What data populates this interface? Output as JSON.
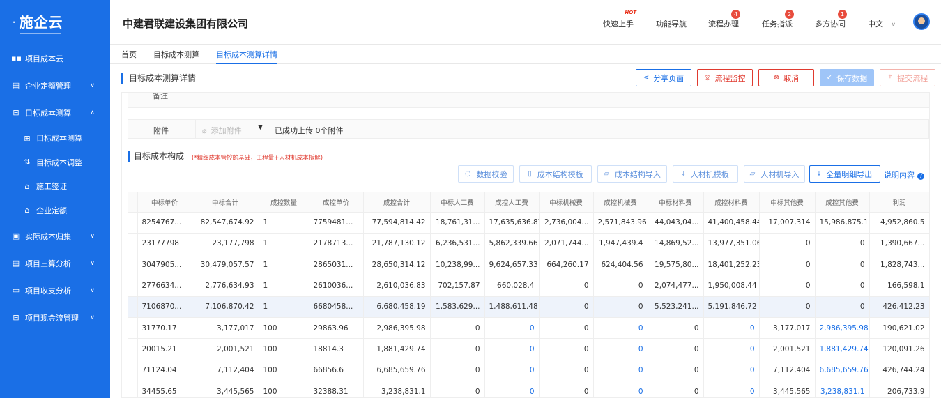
{
  "sidebar": {
    "logo": "施企云",
    "items": [
      {
        "label": "项目成本云",
        "icon": "grid-icon",
        "glyph": "▪▪",
        "chevron": ""
      },
      {
        "label": "企业定额管理",
        "icon": "doc-icon",
        "glyph": "▤",
        "chevron": "∨"
      },
      {
        "label": "目标成本测算",
        "icon": "layers-icon",
        "glyph": "⊟",
        "chevron": "∧"
      },
      {
        "label": "目标成本测算",
        "icon": "calc-icon",
        "glyph": "⊞",
        "chevron": "",
        "sub": true
      },
      {
        "label": "目标成本调整",
        "icon": "adjust-icon",
        "glyph": "⇅",
        "chevron": "",
        "sub": true
      },
      {
        "label": "施工签证",
        "icon": "stamp-icon",
        "glyph": "⌂",
        "chevron": "",
        "sub": true
      },
      {
        "label": "企业定额",
        "icon": "bank-icon",
        "glyph": "⌂",
        "chevron": "",
        "sub": true
      },
      {
        "label": "实际成本归集",
        "icon": "collect-icon",
        "glyph": "▣",
        "chevron": "∨"
      },
      {
        "label": "项目三算分析",
        "icon": "analysis-icon",
        "glyph": "▤",
        "chevron": "∨"
      },
      {
        "label": "项目收支分析",
        "icon": "card-icon",
        "glyph": "▭",
        "chevron": "∨"
      },
      {
        "label": "项目现金流管理",
        "icon": "cash-icon",
        "glyph": "⊟",
        "chevron": "∨"
      }
    ]
  },
  "header": {
    "company": "中建君联建设集团有限公司",
    "nav": [
      {
        "label": "快速上手",
        "badge": "",
        "hot": "HOT"
      },
      {
        "label": "功能导航",
        "badge": "",
        "hot": ""
      },
      {
        "label": "流程办理",
        "badge": "4",
        "hot": ""
      },
      {
        "label": "任务指派",
        "badge": "2",
        "hot": ""
      },
      {
        "label": "多方协同",
        "badge": "1",
        "hot": ""
      }
    ],
    "language": "中文"
  },
  "tabs": [
    "首页",
    "目标成本测算",
    "目标成本测算详情"
  ],
  "page": {
    "title": "目标成本测算详情",
    "buttons": {
      "share": "分享页面",
      "monitor": "流程监控",
      "cancel": "取消",
      "save": "保存数据",
      "submit": "提交流程"
    }
  },
  "form": {
    "remark_label": "备注",
    "attach_label": "附件",
    "attach_add": "添加附件",
    "attach_status": "已成功上传 0个附件"
  },
  "section": {
    "title": "目标成本构成",
    "note": "(*精细成本管控的基础，工程量+人材机成本拆解)",
    "buttons": {
      "validate": "数据校验",
      "template": "成本结构模板",
      "import": "成本结构导入",
      "rcj_template": "人材机模板",
      "rcj_import": "人材机导入",
      "export": "全量明细导出"
    },
    "explain": "说明内容"
  },
  "table": {
    "headers": [
      "中标单价",
      "中标合计",
      "成控数量",
      "成控单价",
      "成控合计",
      "中标人工费",
      "成控人工费",
      "中标机械费",
      "成控机械费",
      "中标材料费",
      "成控材料费",
      "中标其他费",
      "成控其他费",
      "利润"
    ],
    "rows": [
      [
        "8254767...",
        "82,547,674.92",
        "1",
        "7759481...",
        "77,594,814.42",
        "18,761,31...",
        "17,635,636.87",
        "2,736,004...",
        "2,571,843.96",
        "44,043,04...",
        "41,400,458.44",
        "17,007,314",
        "15,986,875.16",
        "4,952,860.5"
      ],
      [
        "23177798",
        "23,177,798",
        "1",
        "2178713...",
        "21,787,130.12",
        "6,236,531...",
        "5,862,339.66",
        "2,071,744...",
        "1,947,439.4",
        "14,869,52...",
        "13,977,351.06",
        "0",
        "0",
        "1,390,667..."
      ],
      [
        "3047905...",
        "30,479,057.57",
        "1",
        "2865031...",
        "28,650,314.12",
        "10,238,99...",
        "9,624,657.33",
        "664,260.17",
        "624,404.56",
        "19,575,80...",
        "18,401,252.23",
        "0",
        "0",
        "1,828,743..."
      ],
      [
        "2776634...",
        "2,776,634.93",
        "1",
        "2610036...",
        "2,610,036.83",
        "702,157.87",
        "660,028.4",
        "0",
        "0",
        "2,074,477...",
        "1,950,008.44",
        "0",
        "0",
        "166,598.1"
      ],
      [
        "7106870...",
        "7,106,870.42",
        "1",
        "6680458...",
        "6,680,458.19",
        "1,583,629...",
        "1,488,611.48",
        "0",
        "0",
        "5,523,241...",
        "5,191,846.72",
        "0",
        "0",
        "426,412.23"
      ],
      [
        "31770.17",
        "3,177,017",
        "100",
        "29863.96",
        "2,986,395.98",
        "0",
        "0",
        "0",
        "0",
        "0",
        "0",
        "3,177,017",
        "2,986,395.98",
        "190,621.02"
      ],
      [
        "20015.21",
        "2,001,521",
        "100",
        "18814.3",
        "1,881,429.74",
        "0",
        "0",
        "0",
        "0",
        "0",
        "0",
        "2,001,521",
        "1,881,429.74",
        "120,091.26"
      ],
      [
        "71124.04",
        "7,112,404",
        "100",
        "66856.6",
        "6,685,659.76",
        "0",
        "0",
        "0",
        "0",
        "0",
        "0",
        "7,112,404",
        "6,685,659.76",
        "426,744.24"
      ],
      [
        "34455.65",
        "3,445,565",
        "100",
        "32388.31",
        "3,238,831.1",
        "0",
        "0",
        "0",
        "0",
        "0",
        "0",
        "3,445,565",
        "3,238,831.1",
        "206,733.9"
      ]
    ],
    "highlight_row": 4
  }
}
